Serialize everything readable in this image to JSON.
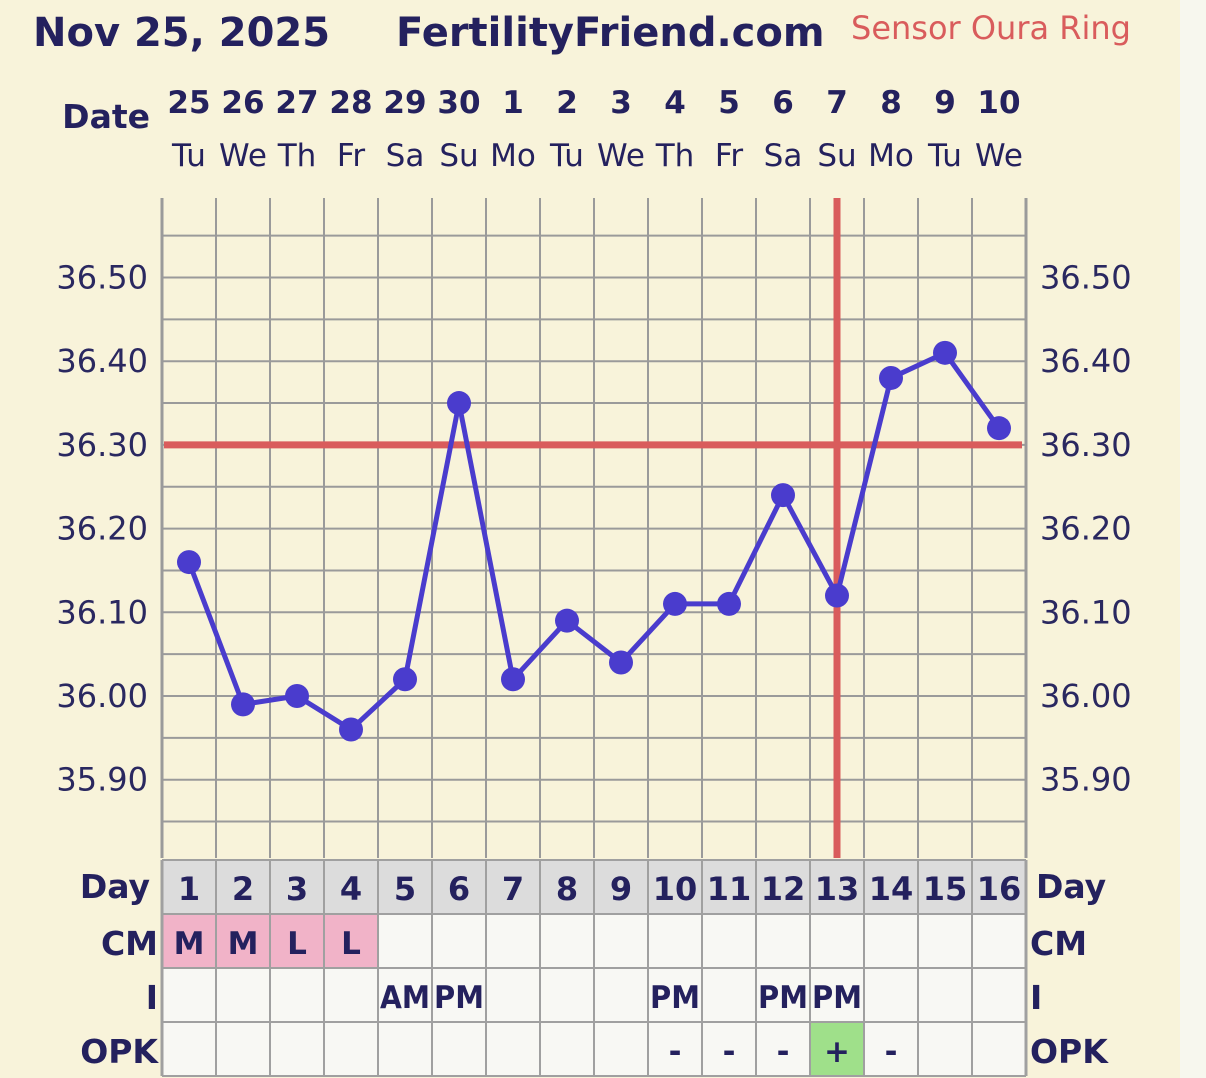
{
  "header": {
    "date": "Nov 25, 2025",
    "site": "FertilityFriend.com",
    "sensor": "Sensor Oura Ring"
  },
  "labels": {
    "date": "Date",
    "day": "Day",
    "cm": "CM",
    "i": "I",
    "opk": "OPK"
  },
  "colors": {
    "background": "#f8f3da",
    "line": "#4a3ccd",
    "coverline": "#d95c5c",
    "grid": "#9a9a9a",
    "cm_fill": "#f1b3c8",
    "opk_positive": "#9fe08a",
    "text": "#24215e"
  },
  "chart_data": {
    "type": "line",
    "title": "",
    "dates": [
      "25",
      "26",
      "27",
      "28",
      "29",
      "30",
      "1",
      "2",
      "3",
      "4",
      "5",
      "6",
      "7",
      "8",
      "9",
      "10"
    ],
    "weekdays": [
      "Tu",
      "We",
      "Th",
      "Fr",
      "Sa",
      "Su",
      "Mo",
      "Tu",
      "We",
      "Th",
      "Fr",
      "Sa",
      "Su",
      "Mo",
      "Tu",
      "We"
    ],
    "cycle_days": [
      "1",
      "2",
      "3",
      "4",
      "5",
      "6",
      "7",
      "8",
      "9",
      "10",
      "11",
      "12",
      "13",
      "14",
      "15",
      "16"
    ],
    "temperatures": [
      36.16,
      35.99,
      36.0,
      35.96,
      36.02,
      36.35,
      36.02,
      36.09,
      36.04,
      36.11,
      36.11,
      36.24,
      36.12,
      36.38,
      36.41,
      36.32
    ],
    "y_ticks": [
      "36.50",
      "36.40",
      "36.30",
      "36.20",
      "36.10",
      "36.00",
      "35.90"
    ],
    "ylim": [
      35.82,
      36.6
    ],
    "coverline": 36.3,
    "ovulation_cycle_day": 13,
    "grid": true,
    "cm": [
      "M",
      "M",
      "L",
      "L",
      "",
      "",
      "",
      "",
      "",
      "",
      "",
      "",
      "",
      "",
      "",
      ""
    ],
    "intercourse": [
      "",
      "",
      "",
      "",
      "AM",
      "PM",
      "",
      "",
      "",
      "PM",
      "",
      "PM",
      "PM",
      "",
      "",
      ""
    ],
    "opk": [
      "",
      "",
      "",
      "",
      "",
      "",
      "",
      "",
      "",
      "-",
      "-",
      "-",
      "+",
      "-",
      "",
      ""
    ]
  }
}
